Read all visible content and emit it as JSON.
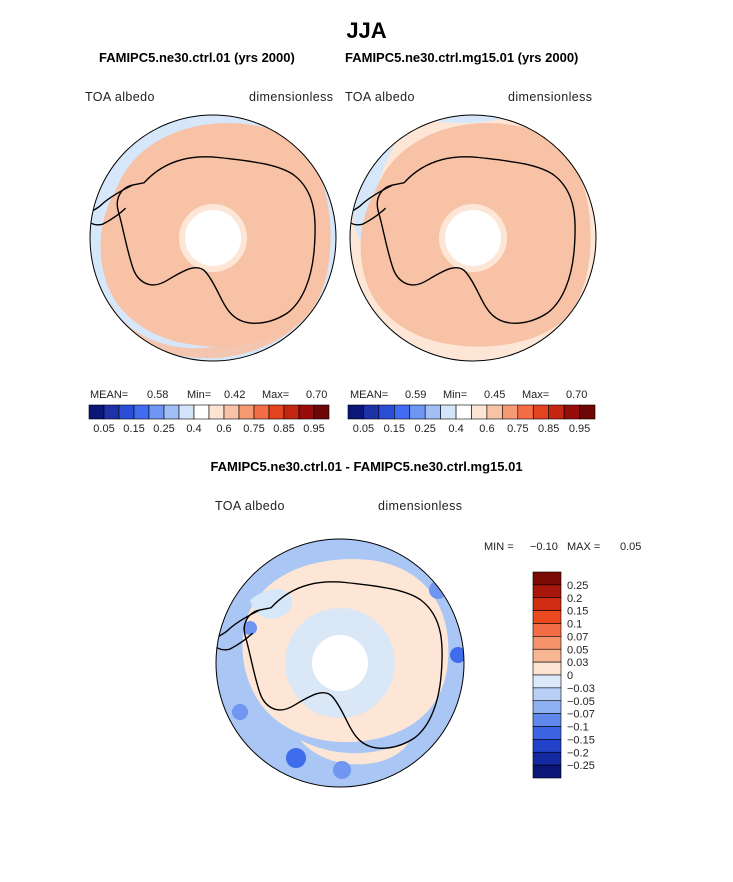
{
  "figure": {
    "title": "JJA",
    "panels": [
      {
        "heading": "FAMIPC5.ne30.ctrl.01 (yrs 2000)",
        "variable": "TOA albedo",
        "units": "dimensionless",
        "stats": {
          "mean_label": "MEAN=",
          "mean": "0.58",
          "min_label": "Min=",
          "min": "0.42",
          "max_label": "Max=",
          "max": "0.70"
        }
      },
      {
        "heading": "FAMIPC5.ne30.ctrl.mg15.01 (yrs 2000)",
        "variable": "TOA albedo",
        "units": "dimensionless",
        "stats": {
          "mean_label": "MEAN=",
          "mean": "0.59",
          "min_label": "Min=",
          "min": "0.45",
          "max_label": "Max=",
          "max": "0.70"
        }
      }
    ],
    "difference": {
      "heading": "FAMIPC5.ne30.ctrl.01 - FAMIPC5.ne30.ctrl.mg15.01",
      "variable": "TOA albedo",
      "units": "dimensionless",
      "min_label": "MIN =",
      "min": "−0.10",
      "max_label": "MAX =",
      "max": "0.05"
    }
  },
  "chart_data": [
    {
      "type": "heatmap",
      "projection": "south polar stereographic",
      "title": "FAMIPC5.ne30.ctrl.01 (yrs 2000)",
      "variable": "TOA albedo",
      "units": "dimensionless",
      "mean": 0.58,
      "min": 0.42,
      "max": 0.7,
      "colorbar_levels": [
        0.05,
        0.1,
        0.15,
        0.2,
        0.25,
        0.3,
        0.4,
        0.5,
        0.6,
        0.65,
        0.75,
        0.8,
        0.85,
        0.9,
        0.95
      ],
      "colorbar_tick_labels": [
        "0.05",
        "0.15",
        "0.25",
        "0.4",
        "0.6",
        "0.75",
        "0.85",
        "0.95"
      ],
      "colorbar_colors": [
        "#0a1678",
        "#1e32a8",
        "#2a4fd6",
        "#3f6cf0",
        "#6f96f4",
        "#a2bff5",
        "#d3e5fb",
        "#ffffff",
        "#fde3d2",
        "#f8c3a5",
        "#f59a73",
        "#f36d46",
        "#e4431f",
        "#c52612",
        "#980d0a",
        "#6e0605"
      ]
    },
    {
      "type": "heatmap",
      "projection": "south polar stereographic",
      "title": "FAMIPC5.ne30.ctrl.mg15.01 (yrs 2000)",
      "variable": "TOA albedo",
      "units": "dimensionless",
      "mean": 0.59,
      "min": 0.45,
      "max": 0.7,
      "colorbar_levels": [
        0.05,
        0.1,
        0.15,
        0.2,
        0.25,
        0.3,
        0.4,
        0.5,
        0.6,
        0.65,
        0.75,
        0.8,
        0.85,
        0.9,
        0.95
      ],
      "colorbar_tick_labels": [
        "0.05",
        "0.15",
        "0.25",
        "0.4",
        "0.6",
        "0.75",
        "0.85",
        "0.95"
      ],
      "colorbar_colors": [
        "#0a1678",
        "#1e32a8",
        "#2a4fd6",
        "#3f6cf0",
        "#6f96f4",
        "#a2bff5",
        "#d3e5fb",
        "#ffffff",
        "#fde3d2",
        "#f8c3a5",
        "#f59a73",
        "#f36d46",
        "#e4431f",
        "#c52612",
        "#980d0a",
        "#6e0605"
      ]
    },
    {
      "type": "heatmap",
      "projection": "south polar stereographic",
      "title": "FAMIPC5.ne30.ctrl.01 - FAMIPC5.ne30.ctrl.mg15.01",
      "variable": "TOA albedo",
      "units": "dimensionless",
      "min": -0.1,
      "max": 0.05,
      "colorbar_levels": [
        0.25,
        0.2,
        0.15,
        0.1,
        0.07,
        0.05,
        0.03,
        0,
        -0.03,
        -0.05,
        -0.07,
        -0.1,
        -0.15,
        -0.2,
        -0.25
      ],
      "colorbar_tick_labels": [
        "0.25",
        "0.2",
        "0.15",
        "0.1",
        "0.07",
        "0.05",
        "0.03",
        "0",
        "−0.03",
        "−0.05",
        "−0.07",
        "−0.1",
        "−0.15",
        "−0.2",
        "−0.25"
      ],
      "colorbar_colors": [
        "#7a0a06",
        "#a8160c",
        "#cf2c12",
        "#ea4a1e",
        "#f36d46",
        "#f7936b",
        "#f9b693",
        "#fde3d2",
        "#dbe9fa",
        "#b8d0f6",
        "#8fb1f2",
        "#5f87ec",
        "#3b63e2",
        "#2242c9",
        "#1428a0",
        "#0a1678"
      ]
    }
  ],
  "colors": {
    "land_peach": "#f7c2a6",
    "ocean_light": "#fde6d6",
    "light_blue": "#d6e7fa",
    "mid_blue": "#a9c6f4",
    "blue": "#6f96f0",
    "dark_blue": "#3f6cea",
    "white": "#ffffff"
  }
}
